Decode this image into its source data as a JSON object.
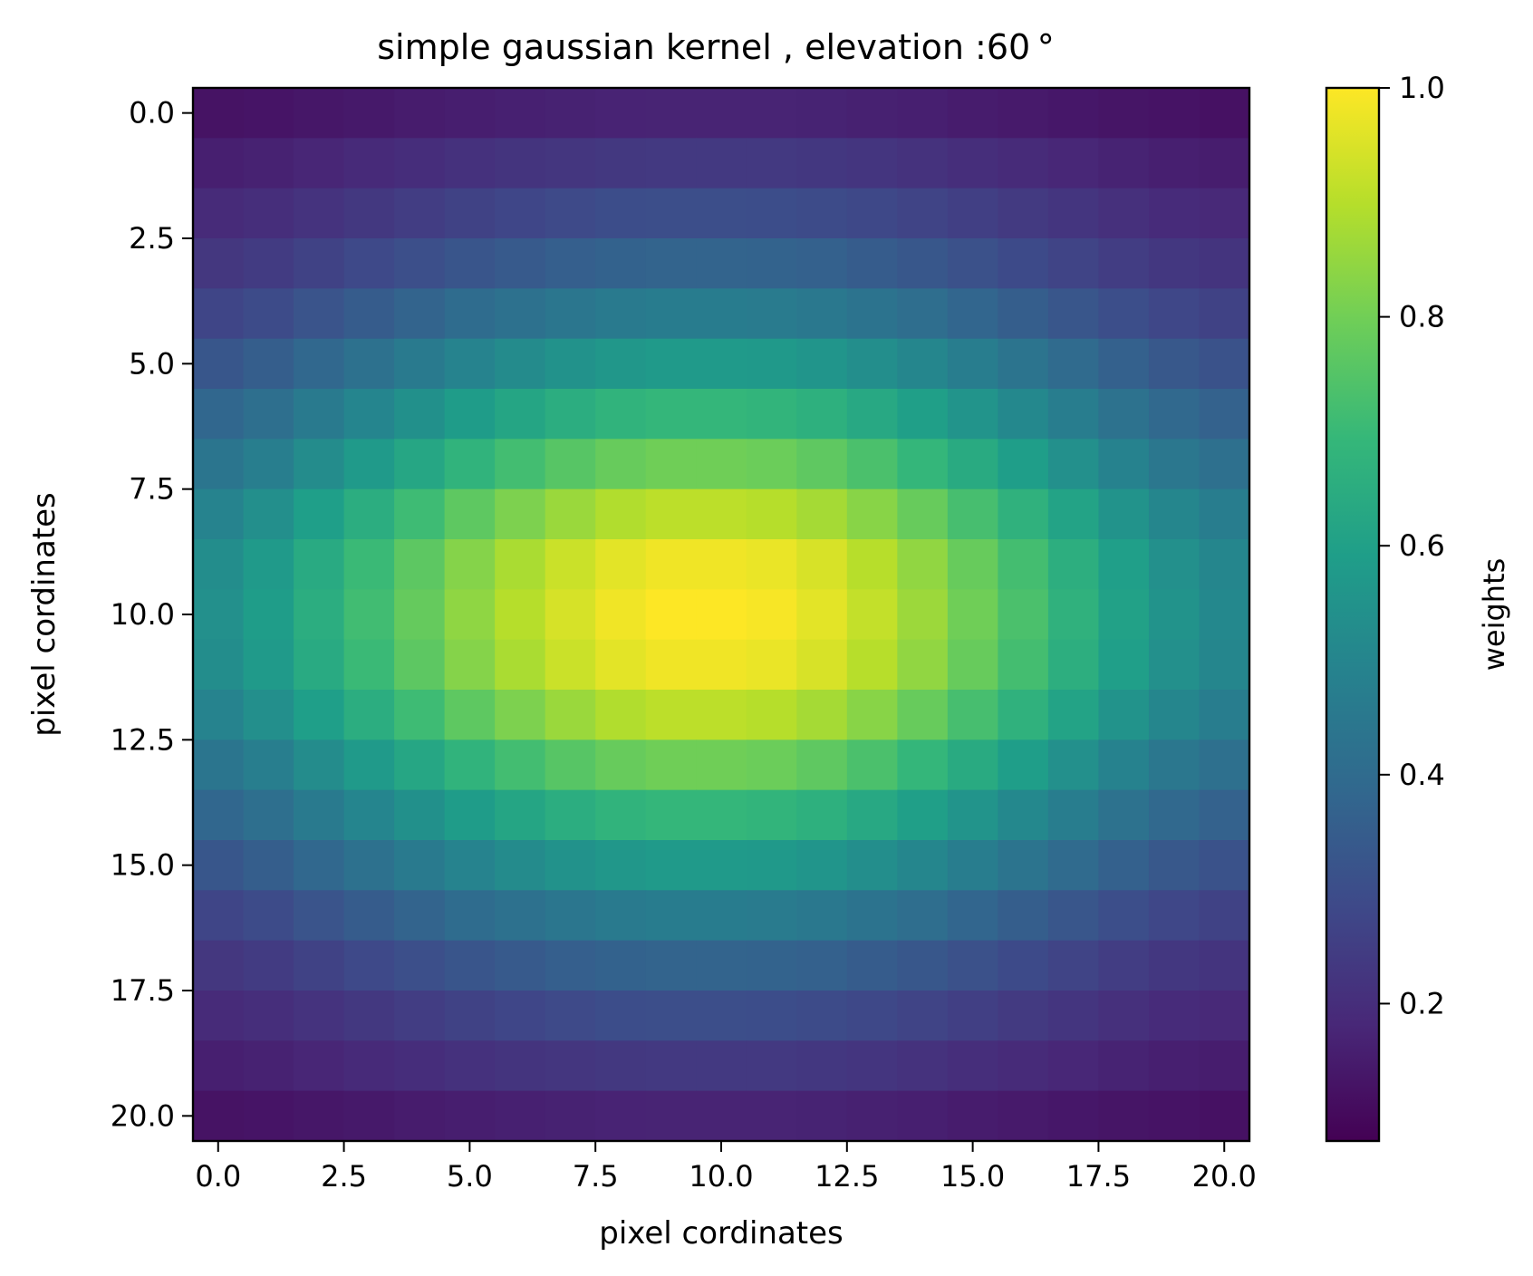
{
  "chart_data": {
    "type": "heatmap",
    "title": "simple gaussian kernel , elevation :60$^\\circ$",
    "title_display": "simple gaussian kernel , elevation :60 °",
    "xlabel": "pixel cordinates",
    "ylabel": "pixel cordinates",
    "colorbar_label": "weights",
    "colormap": "viridis",
    "x": [
      0,
      1,
      2,
      3,
      4,
      5,
      6,
      7,
      8,
      9,
      10,
      11,
      12,
      13,
      14,
      15,
      16,
      17,
      18,
      19,
      20
    ],
    "y": [
      0,
      1,
      2,
      3,
      4,
      5,
      6,
      7,
      8,
      9,
      10,
      11,
      12,
      13,
      14,
      15,
      16,
      17,
      18,
      19,
      20
    ],
    "xlim": [
      -0.5,
      20.5
    ],
    "ylim": [
      20.5,
      -0.5
    ],
    "x_ticks": [
      "0.0",
      "2.5",
      "5.0",
      "7.5",
      "10.0",
      "12.5",
      "15.0",
      "17.5",
      "20.0"
    ],
    "x_tick_values": [
      0,
      2.5,
      5,
      7.5,
      10,
      12.5,
      15,
      17.5,
      20
    ],
    "y_ticks": [
      "0.0",
      "2.5",
      "5.0",
      "7.5",
      "10.0",
      "12.5",
      "15.0",
      "17.5",
      "20.0"
    ],
    "y_tick_values": [
      0,
      2.5,
      5,
      7.5,
      10,
      12.5,
      15,
      17.5,
      20
    ],
    "colorbar_range": [
      0.08,
      1.0
    ],
    "colorbar_ticks": [
      "0.2",
      "0.4",
      "0.6",
      "0.8",
      "1.0"
    ],
    "colorbar_tick_values": [
      0.2,
      0.4,
      0.6,
      0.8,
      1.0
    ],
    "row_weights": [
      0.1,
      0.17,
      0.24,
      0.32,
      0.42,
      0.54,
      0.66,
      0.78,
      0.9,
      0.98,
      1.0,
      0.98,
      0.9,
      0.78,
      0.66,
      0.54,
      0.42,
      0.32,
      0.24,
      0.17,
      0.1
    ],
    "col_weights": [
      0.5,
      0.55,
      0.62,
      0.69,
      0.76,
      0.83,
      0.89,
      0.94,
      0.98,
      1.0,
      1.0,
      0.99,
      0.96,
      0.91,
      0.85,
      0.78,
      0.71,
      0.64,
      0.57,
      0.51,
      0.47
    ],
    "value_model": "weight = min + (1 - min) * row_weight * col_weight",
    "value_min": 0.08
  },
  "colors": {
    "viridis_stops": [
      "#440154",
      "#482878",
      "#3e4989",
      "#31688e",
      "#26828e",
      "#1f9e89",
      "#35b779",
      "#6ece58",
      "#b5de2b",
      "#fde725"
    ]
  }
}
